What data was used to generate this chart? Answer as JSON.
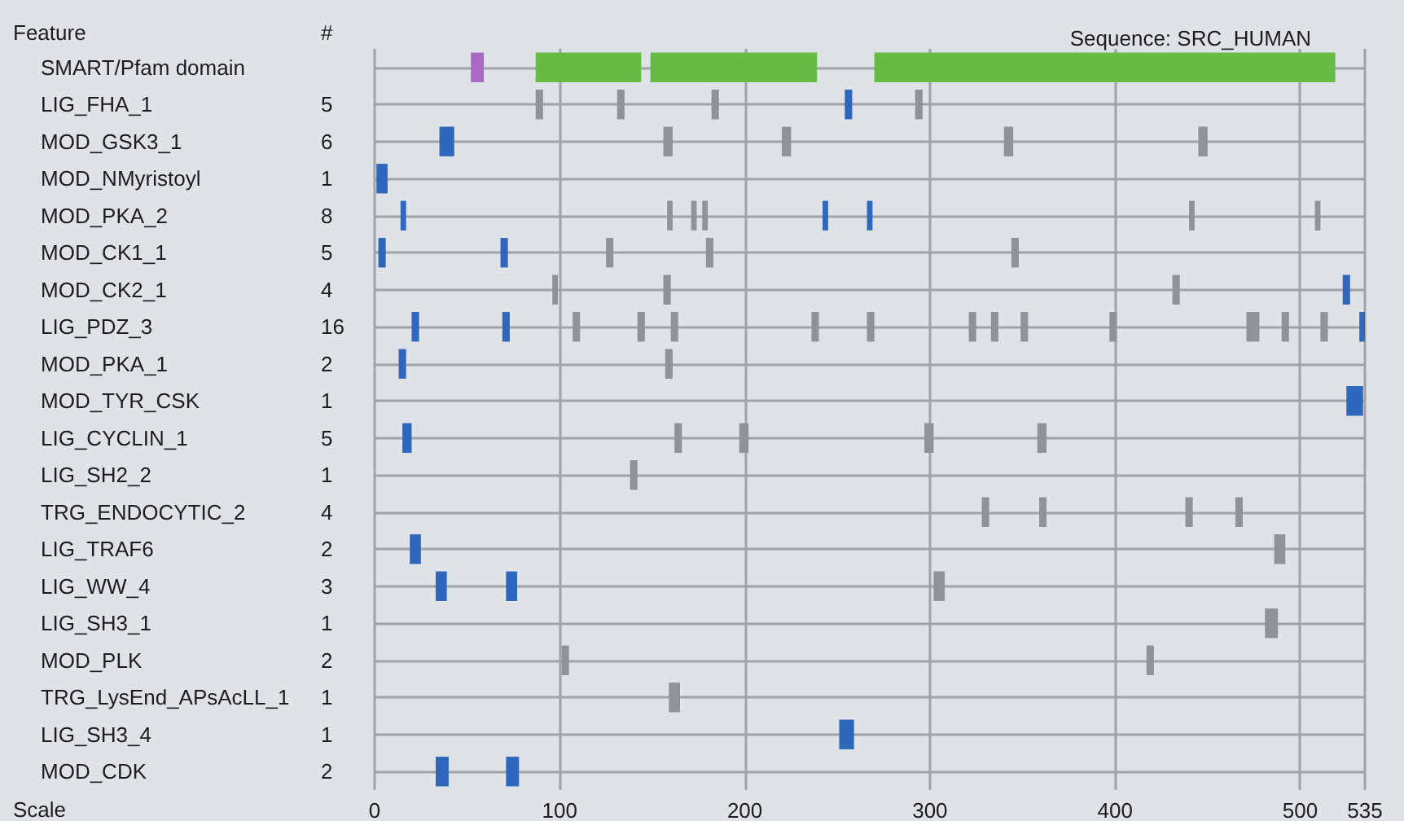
{
  "chart_data": {
    "type": "bar",
    "orientation": "horizontal",
    "title": "Sequence: SRC_HUMAN",
    "ylabel": "Feature",
    "y2label": "#",
    "xlabel": "Scale",
    "categories": [
      "SMART/Pfam domain",
      "LIG_FHA_1",
      "MOD_GSK3_1",
      "MOD_NMyristoyl",
      "MOD_PKA_2",
      "MOD_CK1_1",
      "MOD_CK2_1",
      "LIG_PDZ_3",
      "MOD_PKA_1",
      "MOD_TYR_CSK",
      "LIG_CYCLIN_1",
      "LIG_SH2_2",
      "TRG_ENDOCYTIC_2",
      "LIG_TRAF6",
      "LIG_WW_4",
      "LIG_SH3_1",
      "MOD_PLK",
      "TRG_LysEnd_APsAcLL_1",
      "LIG_SH3_4",
      "MOD_CDK"
    ],
    "y2_categories": [
      null,
      "5",
      "6",
      "1",
      "8",
      "5",
      "4",
      "16",
      "2",
      "1",
      "5",
      "1",
      "4",
      "2",
      "3",
      "1",
      "2",
      "1",
      "1",
      "2"
    ],
    "xlim": [
      0,
      535
    ],
    "xticks": [
      0,
      100,
      200,
      300,
      400,
      500,
      535
    ],
    "grid": true,
    "series": [
      {
        "color": "#a968c2",
        "base": [
          52,
          null,
          null,
          null,
          null,
          null,
          null,
          null,
          null,
          null,
          null,
          null,
          null,
          null,
          null,
          null,
          null,
          null,
          null,
          null
        ],
        "values": [
          7,
          null,
          null,
          null,
          null,
          null,
          null,
          null,
          null,
          null,
          null,
          null,
          null,
          null,
          null,
          null,
          null,
          null,
          null,
          null
        ]
      },
      {
        "color": "#66bb44",
        "base": [
          87,
          null,
          null,
          null,
          null,
          null,
          null,
          null,
          null,
          null,
          null,
          null,
          null,
          null,
          null,
          null,
          null,
          null,
          null,
          null
        ],
        "values": [
          57,
          null,
          null,
          null,
          null,
          null,
          null,
          null,
          null,
          null,
          null,
          null,
          null,
          null,
          null,
          null,
          null,
          null,
          null,
          null
        ]
      },
      {
        "color": "#66bb44",
        "base": [
          149,
          null,
          null,
          null,
          null,
          null,
          null,
          null,
          null,
          null,
          null,
          null,
          null,
          null,
          null,
          null,
          null,
          null,
          null,
          null
        ],
        "values": [
          90,
          null,
          null,
          null,
          null,
          null,
          null,
          null,
          null,
          null,
          null,
          null,
          null,
          null,
          null,
          null,
          null,
          null,
          null,
          null
        ]
      },
      {
        "color": "#66bb44",
        "base": [
          270,
          null,
          null,
          null,
          null,
          null,
          null,
          null,
          null,
          null,
          null,
          null,
          null,
          null,
          null,
          null,
          null,
          null,
          null,
          null
        ],
        "values": [
          249,
          null,
          null,
          null,
          null,
          null,
          null,
          null,
          null,
          null,
          null,
          null,
          null,
          null,
          null,
          null,
          null,
          null,
          null,
          null
        ]
      },
      {
        "color": "#2f67bd",
        "base": [
          null,
          254,
          35,
          1,
          14,
          2,
          523,
          20,
          13,
          525,
          15,
          null,
          null,
          19,
          33,
          null,
          null,
          null,
          251,
          33
        ],
        "values": [
          null,
          4,
          8,
          6,
          3,
          4,
          4,
          4,
          4,
          9,
          5,
          null,
          null,
          6,
          6,
          null,
          null,
          null,
          8,
          7
        ]
      },
      {
        "color": "#2f67bd",
        "base": [
          null,
          null,
          null,
          null,
          242,
          68,
          null,
          69,
          null,
          null,
          null,
          null,
          null,
          null,
          71,
          null,
          null,
          null,
          null,
          71
        ],
        "values": [
          null,
          null,
          null,
          null,
          3,
          4,
          null,
          4,
          null,
          null,
          null,
          null,
          null,
          null,
          6,
          null,
          null,
          null,
          null,
          7
        ]
      },
      {
        "color": "#2f67bd",
        "base": [
          null,
          null,
          null,
          null,
          266,
          null,
          null,
          532,
          null,
          null,
          null,
          null,
          null,
          null,
          null,
          null,
          null,
          null,
          null,
          null
        ],
        "values": [
          null,
          null,
          null,
          null,
          3,
          null,
          null,
          3,
          null,
          null,
          null,
          null,
          null,
          null,
          null,
          null,
          null,
          null,
          null,
          null
        ]
      },
      {
        "color": "#8f9396",
        "base": [
          null,
          87,
          156,
          null,
          158,
          125,
          96,
          107,
          157,
          null,
          162,
          138,
          328,
          486,
          302,
          481,
          101,
          159,
          null,
          null
        ],
        "values": [
          null,
          4,
          5,
          null,
          3,
          4,
          3,
          4,
          4,
          null,
          4,
          4,
          4,
          6,
          6,
          7,
          4,
          6,
          null,
          null
        ]
      },
      {
        "color": "#8f9396",
        "base": [
          null,
          131,
          220,
          null,
          171,
          179,
          156,
          142,
          null,
          null,
          197,
          null,
          359,
          null,
          null,
          null,
          417,
          null,
          null,
          null
        ],
        "values": [
          null,
          4,
          5,
          null,
          3,
          4,
          4,
          4,
          null,
          null,
          5,
          null,
          4,
          null,
          null,
          null,
          4,
          null,
          null,
          null
        ]
      },
      {
        "color": "#8f9396",
        "base": [
          null,
          182,
          340,
          null,
          177,
          344,
          431,
          160,
          null,
          null,
          297,
          null,
          438,
          null,
          null,
          null,
          null,
          null,
          null,
          null
        ],
        "values": [
          null,
          4,
          5,
          null,
          3,
          4,
          4,
          4,
          null,
          null,
          5,
          null,
          4,
          null,
          null,
          null,
          null,
          null,
          null,
          null
        ]
      },
      {
        "color": "#8f9396",
        "base": [
          null,
          292,
          445,
          null,
          440,
          null,
          null,
          236,
          null,
          null,
          358,
          null,
          465,
          null,
          null,
          null,
          null,
          null,
          null,
          null
        ],
        "values": [
          null,
          4,
          5,
          null,
          3,
          null,
          null,
          4,
          null,
          null,
          5,
          null,
          4,
          null,
          null,
          null,
          null,
          null,
          null,
          null
        ]
      },
      {
        "color": "#8f9396",
        "base": [
          null,
          null,
          null,
          null,
          508,
          null,
          null,
          266,
          null,
          null,
          null,
          null,
          null,
          null,
          null,
          null,
          null,
          null,
          null,
          null
        ],
        "values": [
          null,
          null,
          null,
          null,
          3,
          null,
          null,
          4,
          null,
          null,
          null,
          null,
          null,
          null,
          null,
          null,
          null,
          null,
          null,
          null
        ]
      },
      {
        "color": "#8f9396",
        "base": [
          null,
          null,
          null,
          null,
          null,
          null,
          null,
          321,
          null,
          null,
          null,
          null,
          null,
          null,
          null,
          null,
          null,
          null,
          null,
          null
        ],
        "values": [
          null,
          null,
          null,
          null,
          null,
          null,
          null,
          4,
          null,
          null,
          null,
          null,
          null,
          null,
          null,
          null,
          null,
          null,
          null,
          null
        ]
      },
      {
        "color": "#8f9396",
        "base": [
          null,
          null,
          null,
          null,
          null,
          null,
          null,
          333,
          null,
          null,
          null,
          null,
          null,
          null,
          null,
          null,
          null,
          null,
          null,
          null
        ],
        "values": [
          null,
          null,
          null,
          null,
          null,
          null,
          null,
          4,
          null,
          null,
          null,
          null,
          null,
          null,
          null,
          null,
          null,
          null,
          null,
          null
        ]
      },
      {
        "color": "#8f9396",
        "base": [
          null,
          null,
          null,
          null,
          null,
          null,
          null,
          349,
          null,
          null,
          null,
          null,
          null,
          null,
          null,
          null,
          null,
          null,
          null,
          null
        ],
        "values": [
          null,
          null,
          null,
          null,
          null,
          null,
          null,
          4,
          null,
          null,
          null,
          null,
          null,
          null,
          null,
          null,
          null,
          null,
          null,
          null
        ]
      },
      {
        "color": "#8f9396",
        "base": [
          null,
          null,
          null,
          null,
          null,
          null,
          null,
          397,
          null,
          null,
          null,
          null,
          null,
          null,
          null,
          null,
          null,
          null,
          null,
          null
        ],
        "values": [
          null,
          null,
          null,
          null,
          null,
          null,
          null,
          4,
          null,
          null,
          null,
          null,
          null,
          null,
          null,
          null,
          null,
          null,
          null,
          null
        ]
      },
      {
        "color": "#8f9396",
        "base": [
          null,
          null,
          null,
          null,
          null,
          null,
          null,
          471,
          null,
          null,
          null,
          null,
          null,
          null,
          null,
          null,
          null,
          null,
          null,
          null
        ],
        "values": [
          null,
          null,
          null,
          null,
          null,
          null,
          null,
          7,
          null,
          null,
          null,
          null,
          null,
          null,
          null,
          null,
          null,
          null,
          null,
          null
        ]
      },
      {
        "color": "#8f9396",
        "base": [
          null,
          null,
          null,
          null,
          null,
          null,
          null,
          490,
          null,
          null,
          null,
          null,
          null,
          null,
          null,
          null,
          null,
          null,
          null,
          null
        ],
        "values": [
          null,
          null,
          null,
          null,
          null,
          null,
          null,
          4,
          null,
          null,
          null,
          null,
          null,
          null,
          null,
          null,
          null,
          null,
          null,
          null
        ]
      },
      {
        "color": "#8f9396",
        "base": [
          null,
          null,
          null,
          null,
          null,
          null,
          null,
          511,
          null,
          null,
          null,
          null,
          null,
          null,
          null,
          null,
          null,
          null,
          null,
          null
        ],
        "values": [
          null,
          null,
          null,
          null,
          null,
          null,
          null,
          4,
          null,
          null,
          null,
          null,
          null,
          null,
          null,
          null,
          null,
          null,
          null,
          null
        ]
      }
    ]
  }
}
